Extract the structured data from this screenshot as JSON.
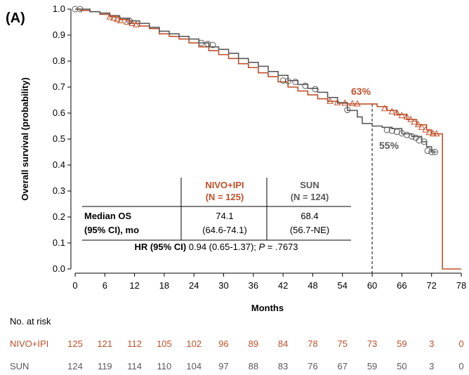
{
  "panel_label": "(A)",
  "colors": {
    "nivo": "#c0502a",
    "sun": "#5a5a5a",
    "axis": "#000000"
  },
  "chart_data": {
    "type": "line",
    "chart_style": "kaplan-meier survival step curve with censor markers",
    "ylabel": "Overall survival (probability)",
    "xlabel": "Months",
    "xlim": [
      0,
      78
    ],
    "ylim": [
      0.0,
      1.0
    ],
    "x_ticks": [
      "0",
      "6",
      "12",
      "18",
      "24",
      "30",
      "36",
      "42",
      "48",
      "54",
      "60",
      "66",
      "72",
      "78"
    ],
    "y_ticks": [
      "0.0",
      "0.1",
      "0.2",
      "0.3",
      "0.4",
      "0.5",
      "0.6",
      "0.7",
      "0.8",
      "0.9",
      "1.0"
    ],
    "grid": false,
    "series": [
      {
        "name": "NIVO+IPI",
        "color": "#c0502a",
        "marker": "triangle",
        "points": [
          [
            0,
            1.0
          ],
          [
            1,
            0.995
          ],
          [
            3,
            0.99
          ],
          [
            5,
            0.98
          ],
          [
            7,
            0.97
          ],
          [
            9,
            0.96
          ],
          [
            11,
            0.945
          ],
          [
            13,
            0.935
          ],
          [
            15,
            0.925
          ],
          [
            17,
            0.905
          ],
          [
            19,
            0.895
          ],
          [
            21,
            0.885
          ],
          [
            23,
            0.87
          ],
          [
            25,
            0.855
          ],
          [
            27,
            0.84
          ],
          [
            29,
            0.825
          ],
          [
            31,
            0.81
          ],
          [
            33,
            0.79
          ],
          [
            35,
            0.775
          ],
          [
            37,
            0.755
          ],
          [
            39,
            0.74
          ],
          [
            41,
            0.72
          ],
          [
            43,
            0.7
          ],
          [
            45,
            0.685
          ],
          [
            47,
            0.67
          ],
          [
            49,
            0.655
          ],
          [
            51,
            0.645
          ],
          [
            53,
            0.638
          ],
          [
            55,
            0.635
          ],
          [
            60,
            0.635
          ],
          [
            61,
            0.625
          ],
          [
            63,
            0.61
          ],
          [
            65,
            0.595
          ],
          [
            67,
            0.575
          ],
          [
            69,
            0.555
          ],
          [
            71,
            0.535
          ],
          [
            72,
            0.52
          ],
          [
            74,
            0.52
          ],
          [
            74.2,
            0.0
          ],
          [
            78,
            0.0
          ]
        ],
        "censors": [
          [
            7,
            0.97
          ],
          [
            7.8,
            0.965
          ],
          [
            8.5,
            0.96
          ],
          [
            9.2,
            0.955
          ],
          [
            10.5,
            0.95
          ],
          [
            11.5,
            0.945
          ],
          [
            12.3,
            0.94
          ],
          [
            51.5,
            0.645
          ],
          [
            53,
            0.64
          ],
          [
            54.5,
            0.638
          ],
          [
            56,
            0.636
          ],
          [
            57,
            0.635
          ],
          [
            62.5,
            0.617
          ],
          [
            64,
            0.605
          ],
          [
            65,
            0.6
          ],
          [
            66,
            0.59
          ],
          [
            67,
            0.585
          ],
          [
            67.8,
            0.575
          ],
          [
            68.5,
            0.565
          ],
          [
            69.3,
            0.555
          ],
          [
            70,
            0.545
          ],
          [
            70.8,
            0.535
          ],
          [
            71.5,
            0.525
          ],
          [
            72.3,
            0.52
          ],
          [
            73,
            0.52
          ]
        ],
        "annotation": "63%"
      },
      {
        "name": "SUN",
        "color": "#5a5a5a",
        "marker": "circle",
        "points": [
          [
            0,
            1.0
          ],
          [
            1,
            1.0
          ],
          [
            3,
            0.99
          ],
          [
            5,
            0.985
          ],
          [
            7,
            0.975
          ],
          [
            9,
            0.965
          ],
          [
            11,
            0.955
          ],
          [
            13,
            0.945
          ],
          [
            15,
            0.93
          ],
          [
            17,
            0.915
          ],
          [
            19,
            0.905
          ],
          [
            21,
            0.895
          ],
          [
            23,
            0.885
          ],
          [
            25,
            0.87
          ],
          [
            27,
            0.855
          ],
          [
            29,
            0.845
          ],
          [
            31,
            0.83
          ],
          [
            33,
            0.81
          ],
          [
            35,
            0.795
          ],
          [
            37,
            0.78
          ],
          [
            39,
            0.76
          ],
          [
            41,
            0.745
          ],
          [
            43,
            0.725
          ],
          [
            45,
            0.71
          ],
          [
            47,
            0.695
          ],
          [
            49,
            0.68
          ],
          [
            51,
            0.66
          ],
          [
            53,
            0.64
          ],
          [
            55,
            0.61
          ],
          [
            57,
            0.585
          ],
          [
            58,
            0.56
          ],
          [
            60,
            0.55
          ],
          [
            62,
            0.545
          ],
          [
            64,
            0.54
          ],
          [
            66,
            0.52
          ],
          [
            68,
            0.51
          ],
          [
            70,
            0.49
          ],
          [
            71,
            0.47
          ],
          [
            72,
            0.45
          ],
          [
            73,
            0.45
          ]
        ],
        "censors": [
          [
            0,
            1.0
          ],
          [
            1,
            1.0
          ],
          [
            11,
            0.955
          ],
          [
            25.5,
            0.87
          ],
          [
            26.8,
            0.866
          ],
          [
            27.8,
            0.862
          ],
          [
            42,
            0.725
          ],
          [
            43,
            0.723
          ],
          [
            44.5,
            0.72
          ],
          [
            46.5,
            0.705
          ],
          [
            48.5,
            0.692
          ],
          [
            55,
            0.612
          ],
          [
            63,
            0.535
          ],
          [
            64,
            0.532
          ],
          [
            65,
            0.528
          ],
          [
            66,
            0.522
          ],
          [
            67,
            0.516
          ],
          [
            68,
            0.51
          ],
          [
            68.8,
            0.505
          ],
          [
            69.5,
            0.495
          ],
          [
            70.5,
            0.49
          ],
          [
            71.2,
            0.455
          ],
          [
            72,
            0.45
          ],
          [
            72.7,
            0.45
          ]
        ],
        "annotation": "55%"
      }
    ],
    "reference_line": {
      "x": 60,
      "style": "dashed"
    },
    "table": {
      "col_headers": [
        {
          "line1": "NIVO+IPI",
          "line2": "(N = 125)"
        },
        {
          "line1": "SUN",
          "line2": "(N = 124)"
        }
      ],
      "row_label_1": "Median OS",
      "row_label_2": "(95% CI), mo",
      "nivo_median": "74.1",
      "nivo_ci": "(64.6-74.1)",
      "sun_median": "68.4",
      "sun_ci": "(56.7-NE)",
      "hr_label": "HR (95% CI)",
      "hr_value": " 0.94 (0.65-1.37); ",
      "p_label": "P",
      "p_value": " = .7673"
    },
    "risk_table": {
      "title": "No. at risk",
      "rows": [
        {
          "label": "NIVO+IPI",
          "values": [
            "125",
            "121",
            "112",
            "105",
            "102",
            "96",
            "89",
            "84",
            "78",
            "75",
            "73",
            "59",
            "3",
            "0"
          ]
        },
        {
          "label": "SUN",
          "values": [
            "124",
            "119",
            "114",
            "110",
            "104",
            "97",
            "88",
            "83",
            "76",
            "67",
            "59",
            "50",
            "3",
            "0"
          ]
        }
      ]
    }
  }
}
